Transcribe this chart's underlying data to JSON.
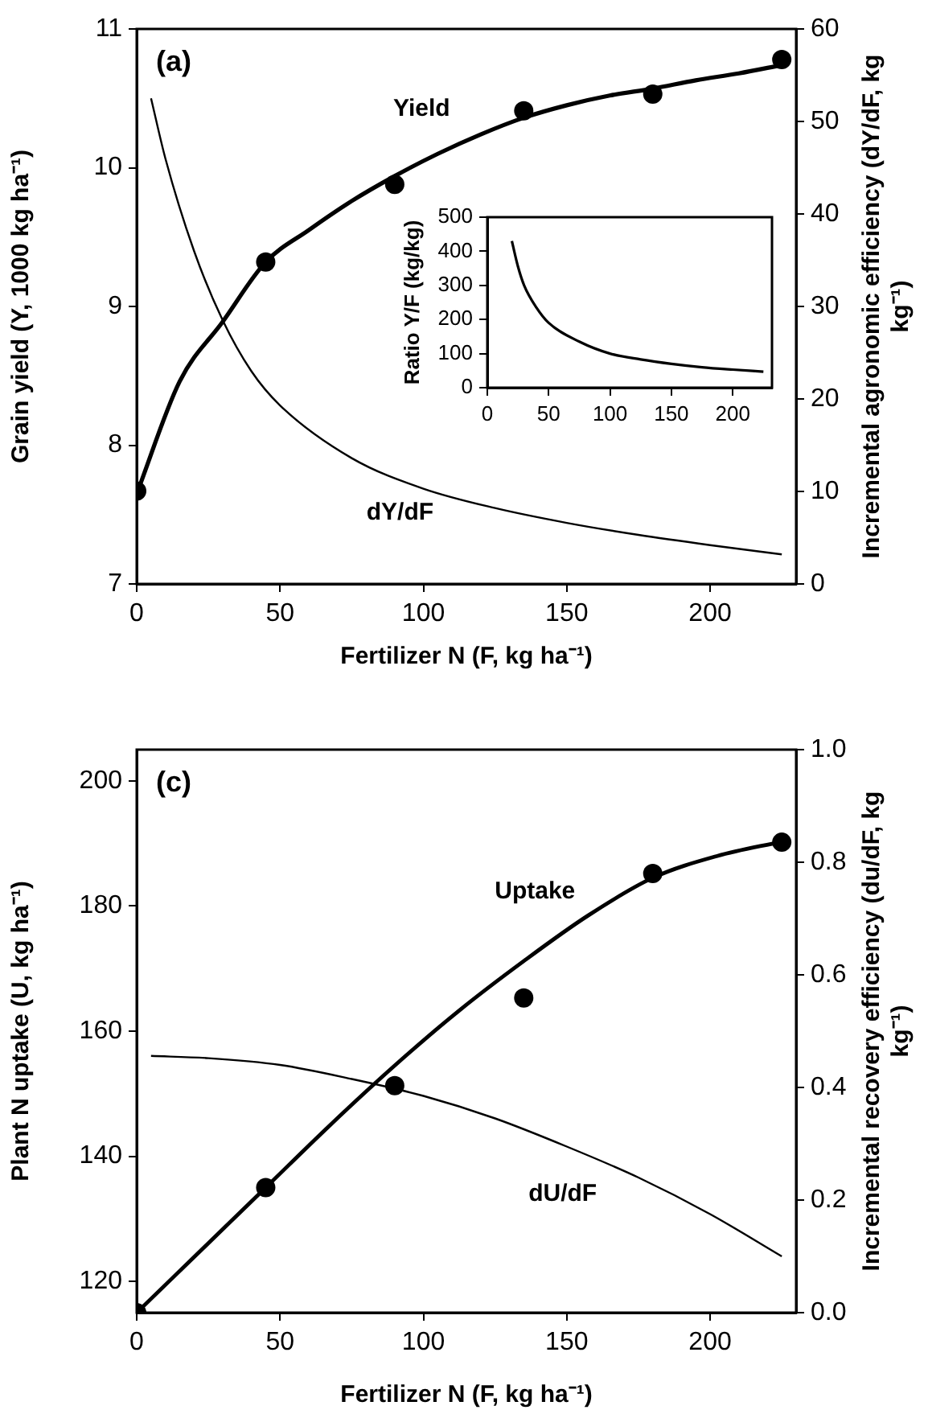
{
  "chart_data": [
    {
      "type": "line",
      "xlabel": "Fertilizer N (F, kg ha⁻¹)",
      "ylabel": "Grain yield (Y, 1000 kg ha⁻¹)",
      "y2label": "Incremental agronomic efficiency (dY/dF, kg kg⁻¹)",
      "annotations": [
        "(a)"
      ],
      "xlim": [
        0,
        230
      ],
      "xticks": [
        0,
        50,
        100,
        150,
        200
      ],
      "ylim": [
        7,
        11
      ],
      "yticks": [
        7,
        8,
        9,
        10,
        11
      ],
      "y2lim": [
        0,
        60
      ],
      "y2ticks": [
        0,
        10,
        20,
        30,
        40,
        50,
        60
      ],
      "grid": false,
      "legend": false,
      "series": [
        {
          "name": "Yield",
          "type": "line",
          "color": "#000000",
          "x": [
            0,
            15,
            30,
            45,
            60,
            75,
            90,
            105,
            120,
            135,
            150,
            165,
            180,
            195,
            210,
            225
          ],
          "values": [
            7.65,
            8.46,
            8.89,
            9.32,
            9.55,
            9.76,
            9.94,
            10.1,
            10.24,
            10.36,
            10.45,
            10.52,
            10.57,
            10.63,
            10.68,
            10.74
          ]
        },
        {
          "type": "scatter",
          "marker": "circle",
          "color": "#000000",
          "x": [
            0,
            45,
            90,
            135,
            180,
            225
          ],
          "values": [
            7.67,
            9.32,
            9.88,
            10.41,
            10.53,
            10.78
          ]
        },
        {
          "name": "dY/dF",
          "type": "line",
          "axis": "y2",
          "color": "#000000",
          "x": [
            5,
            10,
            20,
            30,
            40,
            50,
            75,
            100,
            125,
            150,
            175,
            200,
            225
          ],
          "values": [
            52.5,
            46,
            36,
            28.5,
            23,
            19.3,
            13.6,
            10.3,
            8.2,
            6.6,
            5.3,
            4.2,
            3.2
          ]
        }
      ]
    },
    {
      "type": "line",
      "ylabel": "Ratio Y/F (kg/kg)",
      "xlim": [
        0,
        232
      ],
      "xticks": [
        0,
        50,
        100,
        150,
        200
      ],
      "ylim": [
        0,
        500
      ],
      "yticks": [
        0,
        100,
        200,
        300,
        400,
        500
      ],
      "grid": false,
      "legend": false,
      "series": [
        {
          "type": "line",
          "color": "#000000",
          "x": [
            20,
            25,
            30,
            40,
            50,
            75,
            100,
            125,
            150,
            175,
            200,
            225
          ],
          "values": [
            430,
            355,
            300,
            235,
            190,
            135,
            100,
            83,
            70,
            60,
            53,
            47
          ]
        }
      ]
    },
    {
      "type": "line",
      "xlabel": "Fertilizer N (F, kg ha⁻¹)",
      "ylabel": "Plant N uptake (U, kg ha⁻¹)",
      "y2label": "Incremental recovery efficiency (du/dF, kg kg⁻¹)",
      "annotations": [
        "(c)"
      ],
      "xlim": [
        0,
        230
      ],
      "xticks": [
        0,
        50,
        100,
        150,
        200
      ],
      "ylim": [
        115,
        205
      ],
      "yticks": [
        120,
        140,
        160,
        180,
        200
      ],
      "y2lim": [
        0,
        1
      ],
      "y2ticks": [
        {
          "value": 0,
          "label": "0.0"
        },
        {
          "value": 0.2,
          "label": "0.2"
        },
        {
          "value": 0.4,
          "label": "0.4"
        },
        {
          "value": 0.6,
          "label": "0.6"
        },
        {
          "value": 0.8,
          "label": "0.8"
        },
        {
          "value": 1,
          "label": "1.0"
        }
      ],
      "grid": false,
      "legend": false,
      "series": [
        {
          "name": "Uptake",
          "type": "line",
          "color": "#000000",
          "x": [
            0,
            22.5,
            45,
            67.5,
            90,
            112.5,
            135,
            157.5,
            180,
            202.5,
            225
          ],
          "values": [
            115,
            125,
            135,
            145,
            154.5,
            163.3,
            171.2,
            178.5,
            184.5,
            188,
            190.3
          ]
        },
        {
          "type": "scatter",
          "marker": "circle",
          "color": "#000000",
          "x": [
            0,
            45,
            90,
            135,
            180,
            225
          ],
          "values": [
            115,
            135,
            151.3,
            165.3,
            185.2,
            190.2
          ]
        },
        {
          "name": "dU/dF",
          "type": "line",
          "axis": "y2",
          "color": "#000000",
          "x": [
            5,
            25,
            50,
            75,
            100,
            125,
            150,
            175,
            200,
            225
          ],
          "values": [
            0.456,
            0.452,
            0.44,
            0.415,
            0.385,
            0.345,
            0.295,
            0.24,
            0.175,
            0.1
          ]
        }
      ]
    }
  ]
}
